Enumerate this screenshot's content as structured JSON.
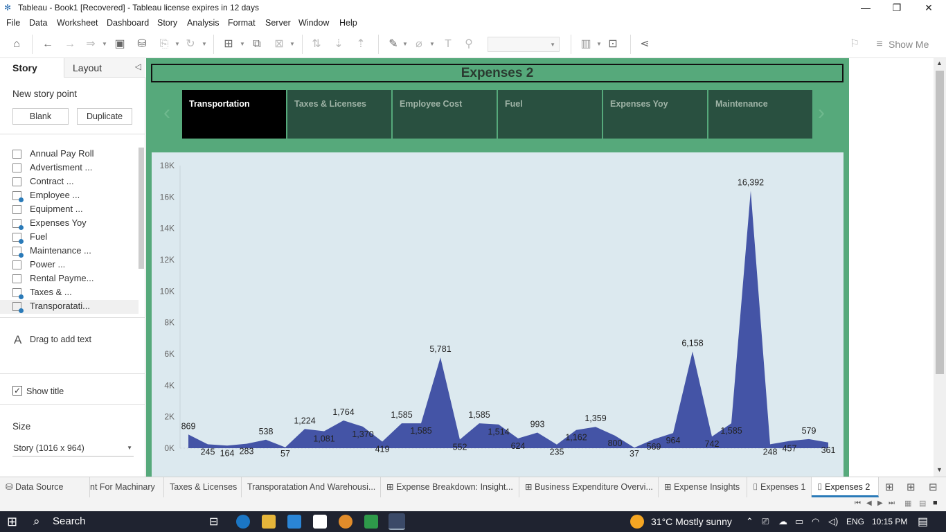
{
  "window": {
    "title": "Tableau - Book1 [Recovered] - Tableau license expires in 12 days",
    "minimize": "—",
    "restore": "❐",
    "close": "✕"
  },
  "menu": [
    "File",
    "Data",
    "Worksheet",
    "Dashboard",
    "Story",
    "Analysis",
    "Format",
    "Server",
    "Window",
    "Help"
  ],
  "toolbar": {
    "show_me": "Show Me"
  },
  "left_pane": {
    "tab_story": "Story",
    "tab_layout": "Layout",
    "collapse": "◁",
    "new_story_point": "New story point",
    "blank_label": "Blank",
    "duplicate_label": "Duplicate",
    "sheets": [
      {
        "label": "Annual Pay Roll",
        "used": false
      },
      {
        "label": "Advertisment ...",
        "used": false
      },
      {
        "label": "Contract ...",
        "used": false
      },
      {
        "label": "Employee ...",
        "used": true
      },
      {
        "label": "Equipment ...",
        "used": false
      },
      {
        "label": "Expenses Yoy",
        "used": true
      },
      {
        "label": "Fuel",
        "used": true
      },
      {
        "label": "Maintenance ...",
        "used": true
      },
      {
        "label": "Power ...",
        "used": false
      },
      {
        "label": "Rental Payme...",
        "used": false
      },
      {
        "label": "Taxes & ...",
        "used": true
      },
      {
        "label": "Transporatati...",
        "used": true
      }
    ],
    "drag_text": "Drag to add text",
    "show_title": "Show title",
    "size_heading": "Size",
    "size_value": "Story (1016 x 964)"
  },
  "story": {
    "title": "Expenses 2",
    "points": [
      {
        "label": "Transportation",
        "active": true
      },
      {
        "label": "Taxes & Licenses",
        "active": false
      },
      {
        "label": "Employee Cost",
        "active": false
      },
      {
        "label": "Fuel",
        "active": false
      },
      {
        "label": "Expenses Yoy",
        "active": false
      },
      {
        "label": "Maintenance",
        "active": false
      }
    ],
    "prev_arrow": "‹",
    "next_arrow": "›"
  },
  "chart_data": {
    "type": "area",
    "ylim": [
      0,
      18000
    ],
    "y_ticks": [
      "0K",
      "2K",
      "4K",
      "6K",
      "8K",
      "10K",
      "12K",
      "14K",
      "16K",
      "18K"
    ],
    "color": "#4454a6",
    "values": [
      869,
      245,
      164,
      283,
      538,
      57,
      1224,
      1081,
      1764,
      1370,
      419,
      1585,
      1585,
      5781,
      552,
      1585,
      1514,
      624,
      993,
      235,
      1162,
      1359,
      800,
      37,
      569,
      964,
      6158,
      742,
      1585,
      16392,
      248,
      457,
      579,
      361
    ],
    "labels": [
      "869",
      "245",
      "164",
      "283",
      "538",
      "57",
      "1,224",
      "1,081",
      "1,764",
      "1,370",
      "419",
      "1,585",
      "1,585",
      "5,781",
      "552",
      "1,585",
      "1,514",
      "624",
      "993",
      "235",
      "1,162",
      "1,359",
      "800",
      "37",
      "569",
      "964",
      "6,158",
      "742",
      "1,585",
      "16,392",
      "248",
      "457",
      "579",
      "361"
    ]
  },
  "bottom_tabs": [
    {
      "label": "Data Source",
      "icon": "⛁",
      "active": false
    },
    {
      "label": "nt For Machinary",
      "icon": "",
      "active": false
    },
    {
      "label": "Taxes & Licenses",
      "icon": "",
      "active": false
    },
    {
      "label": "Transporatation And Warehousi...",
      "icon": "",
      "active": false
    },
    {
      "label": "Expense Breakdown: Insight...",
      "icon": "⊞",
      "active": false
    },
    {
      "label": "Business Expenditure Overvi...",
      "icon": "⊞",
      "active": false
    },
    {
      "label": "Expense Insights",
      "icon": "⊞",
      "active": false
    },
    {
      "label": "Expenses 1",
      "icon": "⌷",
      "active": false
    },
    {
      "label": "Expenses 2",
      "icon": "⌷",
      "active": true
    }
  ],
  "taskbar": {
    "search": "Search",
    "weather": "31°C  Mostly sunny",
    "lang": "ENG",
    "time": "10:15 PM"
  },
  "colors": {
    "story_bg": "#56a97b",
    "story_point_bg": "#295040",
    "chart_bg": "#dce9ef",
    "area": "#4454a6"
  }
}
